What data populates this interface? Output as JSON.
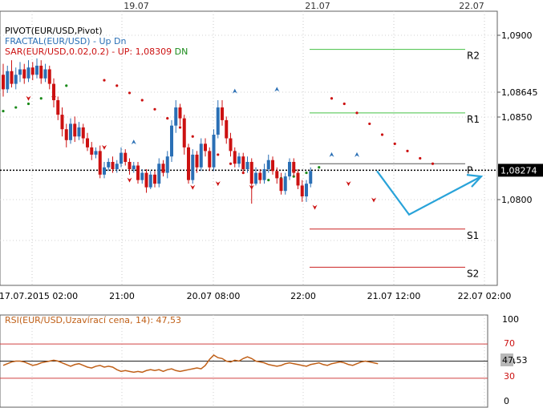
{
  "chart_data": {
    "type": "candlestick",
    "symbol": "EUR/USD",
    "top_dates": [
      "19.07",
      "21.07",
      "22.07"
    ],
    "time_labels": [
      "17.07.2015 02:00",
      "21:00",
      "20.07 08:00",
      "22:00",
      "21.07 12:00",
      "22.07 02:00"
    ],
    "y_ticks": [
      "1,0900",
      "1,08645",
      "1,0850",
      "1,0800"
    ],
    "ylim": [
      1.0764,
      1.0915
    ],
    "current_price": "1,08274",
    "current_price_value": 1.08274,
    "indicators": {
      "pivot": {
        "label": "PIVOT(EUR/USD,Pivot)"
      },
      "fractal": {
        "label": "FRACTAL(EUR/USD)",
        "up": "Up",
        "dn": "Dn"
      },
      "sar": {
        "label": "SAR(EUR/USD,0.02,0.2)",
        "up": "UP: 1,08309",
        "dn": "DN"
      }
    },
    "pivot_levels": [
      {
        "name": "R2",
        "value": 1.0894
      },
      {
        "name": "R1",
        "value": 1.0859
      },
      {
        "name": "P",
        "value": 1.0831
      },
      {
        "name": "S1",
        "value": 1.0795
      },
      {
        "name": "S2",
        "value": 1.0774
      }
    ],
    "candles": [
      [
        1.088,
        1.0872,
        1.0886,
        1.0868
      ],
      [
        1.0872,
        1.0882,
        1.0885,
        1.087
      ],
      [
        1.0882,
        1.0875,
        1.0888,
        1.0873
      ],
      [
        1.0875,
        1.088,
        1.0884,
        1.0872
      ],
      [
        1.088,
        1.0883,
        1.0887,
        1.0876
      ],
      [
        1.0883,
        1.0878,
        1.0886,
        1.0875
      ],
      [
        1.0878,
        1.0884,
        1.0888,
        1.0876
      ],
      [
        1.0884,
        1.088,
        1.0887,
        1.0877
      ],
      [
        1.088,
        1.0885,
        1.0889,
        1.0878
      ],
      [
        1.0885,
        1.0878,
        1.0888,
        1.0875
      ],
      [
        1.0878,
        1.0883,
        1.0886,
        1.0876
      ],
      [
        1.0883,
        1.0875,
        1.0885,
        1.0872
      ],
      [
        1.0875,
        1.0866,
        1.0878,
        1.0862
      ],
      [
        1.0866,
        1.0858,
        1.0868,
        1.0855
      ],
      [
        1.0858,
        1.085,
        1.0862,
        1.0846
      ],
      [
        1.085,
        1.0844,
        1.0853,
        1.084
      ],
      [
        1.0844,
        1.0853,
        1.0856,
        1.0842
      ],
      [
        1.0853,
        1.0846,
        1.0857,
        1.0843
      ],
      [
        1.0846,
        1.0851,
        1.0854,
        1.0844
      ],
      [
        1.0851,
        1.0845,
        1.0853,
        1.0842
      ],
      [
        1.0845,
        1.084,
        1.0848,
        1.0838
      ],
      [
        1.084,
        1.0836,
        1.0843,
        1.0833
      ],
      [
        1.0836,
        1.0838,
        1.084,
        1.0834
      ],
      [
        1.0838,
        1.0825,
        1.0841,
        1.0823
      ],
      [
        1.0825,
        1.0829,
        1.0832,
        1.0823
      ],
      [
        1.0829,
        1.0832,
        1.0834,
        1.0827
      ],
      [
        1.0832,
        1.0828,
        1.0835,
        1.0826
      ],
      [
        1.0828,
        1.0831,
        1.0833,
        1.0826
      ],
      [
        1.0831,
        1.0837,
        1.084,
        1.0829
      ],
      [
        1.0837,
        1.0832,
        1.0839,
        1.083
      ],
      [
        1.0832,
        1.0828,
        1.0834,
        1.0825
      ],
      [
        1.0828,
        1.083,
        1.0832,
        1.0826
      ],
      [
        1.083,
        1.0822,
        1.0832,
        1.082
      ],
      [
        1.0822,
        1.0826,
        1.0828,
        1.082
      ],
      [
        1.0826,
        1.0818,
        1.0828,
        1.0815
      ],
      [
        1.0818,
        1.0825,
        1.0827,
        1.0817
      ],
      [
        1.0825,
        1.082,
        1.0827,
        1.0818
      ],
      [
        1.082,
        1.0831,
        1.0834,
        1.0818
      ],
      [
        1.0831,
        1.0826,
        1.0833,
        1.0824
      ],
      [
        1.0826,
        1.0835,
        1.0838,
        1.0823
      ],
      [
        1.0835,
        1.0852,
        1.0855,
        1.0832
      ],
      [
        1.0852,
        1.0862,
        1.0866,
        1.0848
      ],
      [
        1.0862,
        1.0856,
        1.0864,
        1.0852
      ],
      [
        1.0856,
        1.084,
        1.0858,
        1.0836
      ],
      [
        1.084,
        1.0822,
        1.0842,
        1.082
      ],
      [
        1.0822,
        1.0836,
        1.0839,
        1.082
      ],
      [
        1.0836,
        1.0829,
        1.0838,
        1.0826
      ],
      [
        1.0829,
        1.0842,
        1.0845,
        1.0827
      ],
      [
        1.0842,
        1.0838,
        1.0845,
        1.0835
      ],
      [
        1.0838,
        1.0829,
        1.084,
        1.0827
      ],
      [
        1.0829,
        1.0847,
        1.085,
        1.0827
      ],
      [
        1.0847,
        1.0862,
        1.0866,
        1.0845
      ],
      [
        1.0862,
        1.0855,
        1.0866,
        1.0852
      ],
      [
        1.0855,
        1.0845,
        1.0857,
        1.0842
      ],
      [
        1.0845,
        1.0838,
        1.0848,
        1.0835
      ],
      [
        1.0838,
        1.0831,
        1.084,
        1.0829
      ],
      [
        1.0831,
        1.0835,
        1.0837,
        1.0829
      ],
      [
        1.0835,
        1.0828,
        1.0837,
        1.0826
      ],
      [
        1.0828,
        1.0832,
        1.0835,
        1.0826
      ],
      [
        1.0832,
        1.082,
        1.0834,
        1.0809
      ],
      [
        1.082,
        1.0826,
        1.0829,
        1.0819
      ],
      [
        1.0826,
        1.0822,
        1.0828,
        1.082
      ],
      [
        1.0822,
        1.0828,
        1.0831,
        1.082
      ],
      [
        1.0828,
        1.0833,
        1.0836,
        1.0826
      ],
      [
        1.0833,
        1.0827,
        1.0835,
        1.0825
      ],
      [
        1.0827,
        1.0823,
        1.0829,
        1.082
      ],
      [
        1.0823,
        1.0816,
        1.0826,
        1.0814
      ],
      [
        1.0816,
        1.0824,
        1.0826,
        1.0814
      ],
      [
        1.0824,
        1.0832,
        1.0834,
        1.0822
      ],
      [
        1.0832,
        1.0826,
        1.0834,
        1.0824
      ],
      [
        1.0826,
        1.0819,
        1.0828,
        1.0817
      ],
      [
        1.0819,
        1.0813,
        1.0822,
        1.081
      ],
      [
        1.0813,
        1.082,
        1.0822,
        1.081
      ],
      [
        1.082,
        1.0827,
        1.0829,
        1.0818
      ]
    ],
    "fractals_up": [
      [
        31,
        1.0843
      ],
      [
        55,
        1.0871
      ],
      [
        65,
        1.0872
      ],
      [
        78,
        1.0836
      ],
      [
        84,
        1.0836
      ]
    ],
    "fractals_dn": [
      [
        6,
        1.0867
      ],
      [
        12,
        1.0867
      ],
      [
        24,
        1.084
      ],
      [
        30,
        1.0822
      ],
      [
        45,
        1.0818
      ],
      [
        51,
        1.082
      ],
      [
        59,
        1.0818
      ],
      [
        74,
        1.0807
      ],
      [
        82,
        1.082
      ],
      [
        88,
        1.0811
      ]
    ],
    "sar_up": [
      [
        0,
        1.086
      ],
      [
        3,
        1.0862
      ],
      [
        6,
        1.0864
      ],
      [
        9,
        1.0867
      ],
      [
        12,
        1.087
      ],
      [
        15,
        1.0874
      ]
    ],
    "sar_dn": [
      [
        24,
        1.0877
      ],
      [
        27,
        1.0874
      ],
      [
        30,
        1.087
      ],
      [
        33,
        1.0866
      ],
      [
        36,
        1.0861
      ],
      [
        39,
        1.0856
      ],
      [
        42,
        1.0851
      ],
      [
        45,
        1.0846
      ],
      [
        48,
        1.0841
      ],
      [
        51,
        1.0836
      ],
      [
        54,
        1.0831
      ],
      [
        57,
        1.0826
      ]
    ],
    "sar_up2": [
      [
        60,
        1.0822
      ],
      [
        63,
        1.0822
      ],
      [
        66,
        1.0823
      ],
      [
        69,
        1.0824
      ],
      [
        72,
        1.0826
      ],
      [
        75,
        1.0829
      ]
    ],
    "sar_dn2": [
      [
        78,
        1.0867
      ],
      [
        81,
        1.0864
      ],
      [
        84,
        1.0859
      ],
      [
        87,
        1.0853
      ],
      [
        90,
        1.0847
      ],
      [
        93,
        1.0842
      ],
      [
        96,
        1.0838
      ],
      [
        99,
        1.0834
      ],
      [
        102,
        1.0831
      ]
    ],
    "projection": [
      [
        1.0827,
        0
      ],
      [
        1.0803,
        1
      ],
      [
        1.0824,
        2
      ]
    ],
    "rsi": {
      "label": "RSI(EUR/USD,Uzavírací cena, 14): 47,53",
      "value_label": "47,53",
      "ylim": [
        0,
        100
      ],
      "levels": [
        70,
        50,
        30
      ],
      "tick_labels": [
        "100",
        "70",
        "50",
        "30",
        "0"
      ],
      "values": [
        45,
        47,
        49,
        50,
        50,
        49,
        47,
        45,
        46,
        48,
        49,
        50,
        51,
        50,
        48,
        46,
        44,
        46,
        47,
        45,
        43,
        42,
        44,
        45,
        43,
        44,
        43,
        40,
        38,
        39,
        38,
        37,
        38,
        37,
        39,
        40,
        39,
        40,
        38,
        40,
        41,
        39,
        38,
        39,
        40,
        41,
        42,
        41,
        45,
        52,
        57,
        54,
        53,
        50,
        49,
        51,
        50,
        53,
        55,
        53,
        50,
        49,
        48,
        46,
        45,
        44,
        45,
        47,
        48,
        47,
        46,
        45,
        44,
        46,
        47,
        48,
        46,
        45,
        47,
        48,
        49,
        48,
        46,
        45,
        47,
        49,
        50,
        49,
        48,
        47
      ]
    }
  }
}
